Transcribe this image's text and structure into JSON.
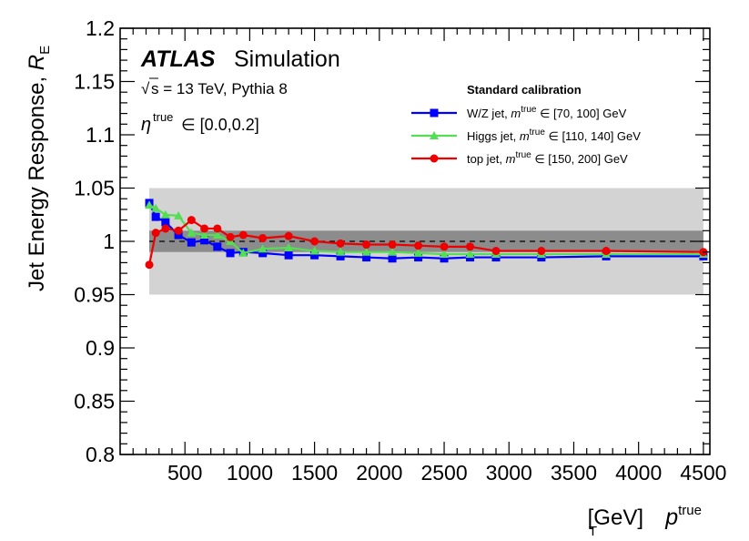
{
  "chart_data": {
    "type": "line",
    "xlabel": "p_T^true [GeV]",
    "ylabel": "Jet Energy Response, R_E",
    "xlim": [
      0,
      4550
    ],
    "ylim": [
      0.8,
      1.2
    ],
    "grid": false,
    "xticks": [
      500,
      1000,
      1500,
      2000,
      2500,
      3000,
      3500,
      4000,
      4500
    ],
    "yticks": [
      0.8,
      0.85,
      0.9,
      0.95,
      1,
      1.05,
      1.1,
      1.15,
      1.2
    ],
    "ytick_labels": [
      "0.8",
      "0.85",
      "0.9",
      "0.95",
      "1",
      "1.05",
      "1.1",
      "1.15",
      "1.2"
    ],
    "xtick_labels": [
      "500",
      "1000",
      "1500",
      "2000",
      "2500",
      "3000",
      "3500",
      "4000",
      "4500"
    ],
    "reference_line": 1.0,
    "bands": [
      {
        "name": "±5%",
        "range": [
          0.95,
          1.05
        ],
        "x_range": [
          225,
          4500
        ],
        "color": "#d3d3d3"
      },
      {
        "name": "±1%",
        "range": [
          0.99,
          1.01
        ],
        "x_range": [
          225,
          4500
        ],
        "color": "#8c8c8c"
      }
    ],
    "annotations": {
      "atlas": "ATLAS",
      "simulation": "Simulation",
      "sqrt_s": "s = 13 TeV, Pythia 8",
      "eta_sym": "η",
      "eta_sup": "true",
      "eta_range": "∈ [0.0,0.2]"
    },
    "legend": {
      "title": "Standard calibration",
      "placement": "top-right"
    },
    "series": [
      {
        "name": "W/Z jet",
        "label_prefix": "W/Z jet, ",
        "label_m": "m",
        "label_sup": "true",
        "label_range": "∈ [70, 100] GeV",
        "color": "#0000ff",
        "marker": "square",
        "x": [
          225,
          275,
          350,
          450,
          550,
          650,
          750,
          850,
          950,
          1100,
          1300,
          1500,
          1700,
          1900,
          2100,
          2300,
          2500,
          2700,
          2900,
          3250,
          3750,
          4500
        ],
        "y": [
          1.036,
          1.023,
          1.018,
          1.006,
          0.999,
          1.001,
          0.995,
          0.989,
          0.99,
          0.989,
          0.987,
          0.987,
          0.986,
          0.985,
          0.984,
          0.985,
          0.984,
          0.985,
          0.985,
          0.985,
          0.986,
          0.986
        ]
      },
      {
        "name": "Higgs jet",
        "label_prefix": "Higgs jet, ",
        "label_m": "m",
        "label_sup": "true",
        "label_range": "∈ [110, 140] GeV",
        "color": "#55dd55",
        "marker": "triangle",
        "x": [
          225,
          275,
          350,
          450,
          550,
          650,
          750,
          850,
          950,
          1100,
          1300,
          1500,
          1700,
          1900,
          2100,
          2300,
          2500,
          2700,
          2900,
          3250,
          3750,
          4500
        ],
        "y": [
          1.034,
          1.031,
          1.025,
          1.024,
          1.008,
          1.006,
          1.006,
          1.0,
          0.989,
          0.993,
          0.994,
          0.991,
          0.99,
          0.99,
          0.99,
          0.989,
          0.988,
          0.988,
          0.988,
          0.988,
          0.988,
          0.988
        ]
      },
      {
        "name": "top jet",
        "label_prefix": "top jet, ",
        "label_m": "m",
        "label_sup": "true",
        "label_range": "∈ [150, 200] GeV",
        "color": "#ee0000",
        "marker": "circle",
        "x": [
          225,
          275,
          350,
          450,
          550,
          650,
          750,
          850,
          950,
          1100,
          1300,
          1500,
          1700,
          1900,
          2100,
          2300,
          2500,
          2700,
          2900,
          3250,
          3750,
          4500
        ],
        "y": [
          0.978,
          1.008,
          1.012,
          1.01,
          1.02,
          1.012,
          1.012,
          1.004,
          1.006,
          1.003,
          1.005,
          1.0,
          0.998,
          0.997,
          0.997,
          0.996,
          0.995,
          0.995,
          0.991,
          0.991,
          0.991,
          0.99
        ]
      }
    ]
  }
}
